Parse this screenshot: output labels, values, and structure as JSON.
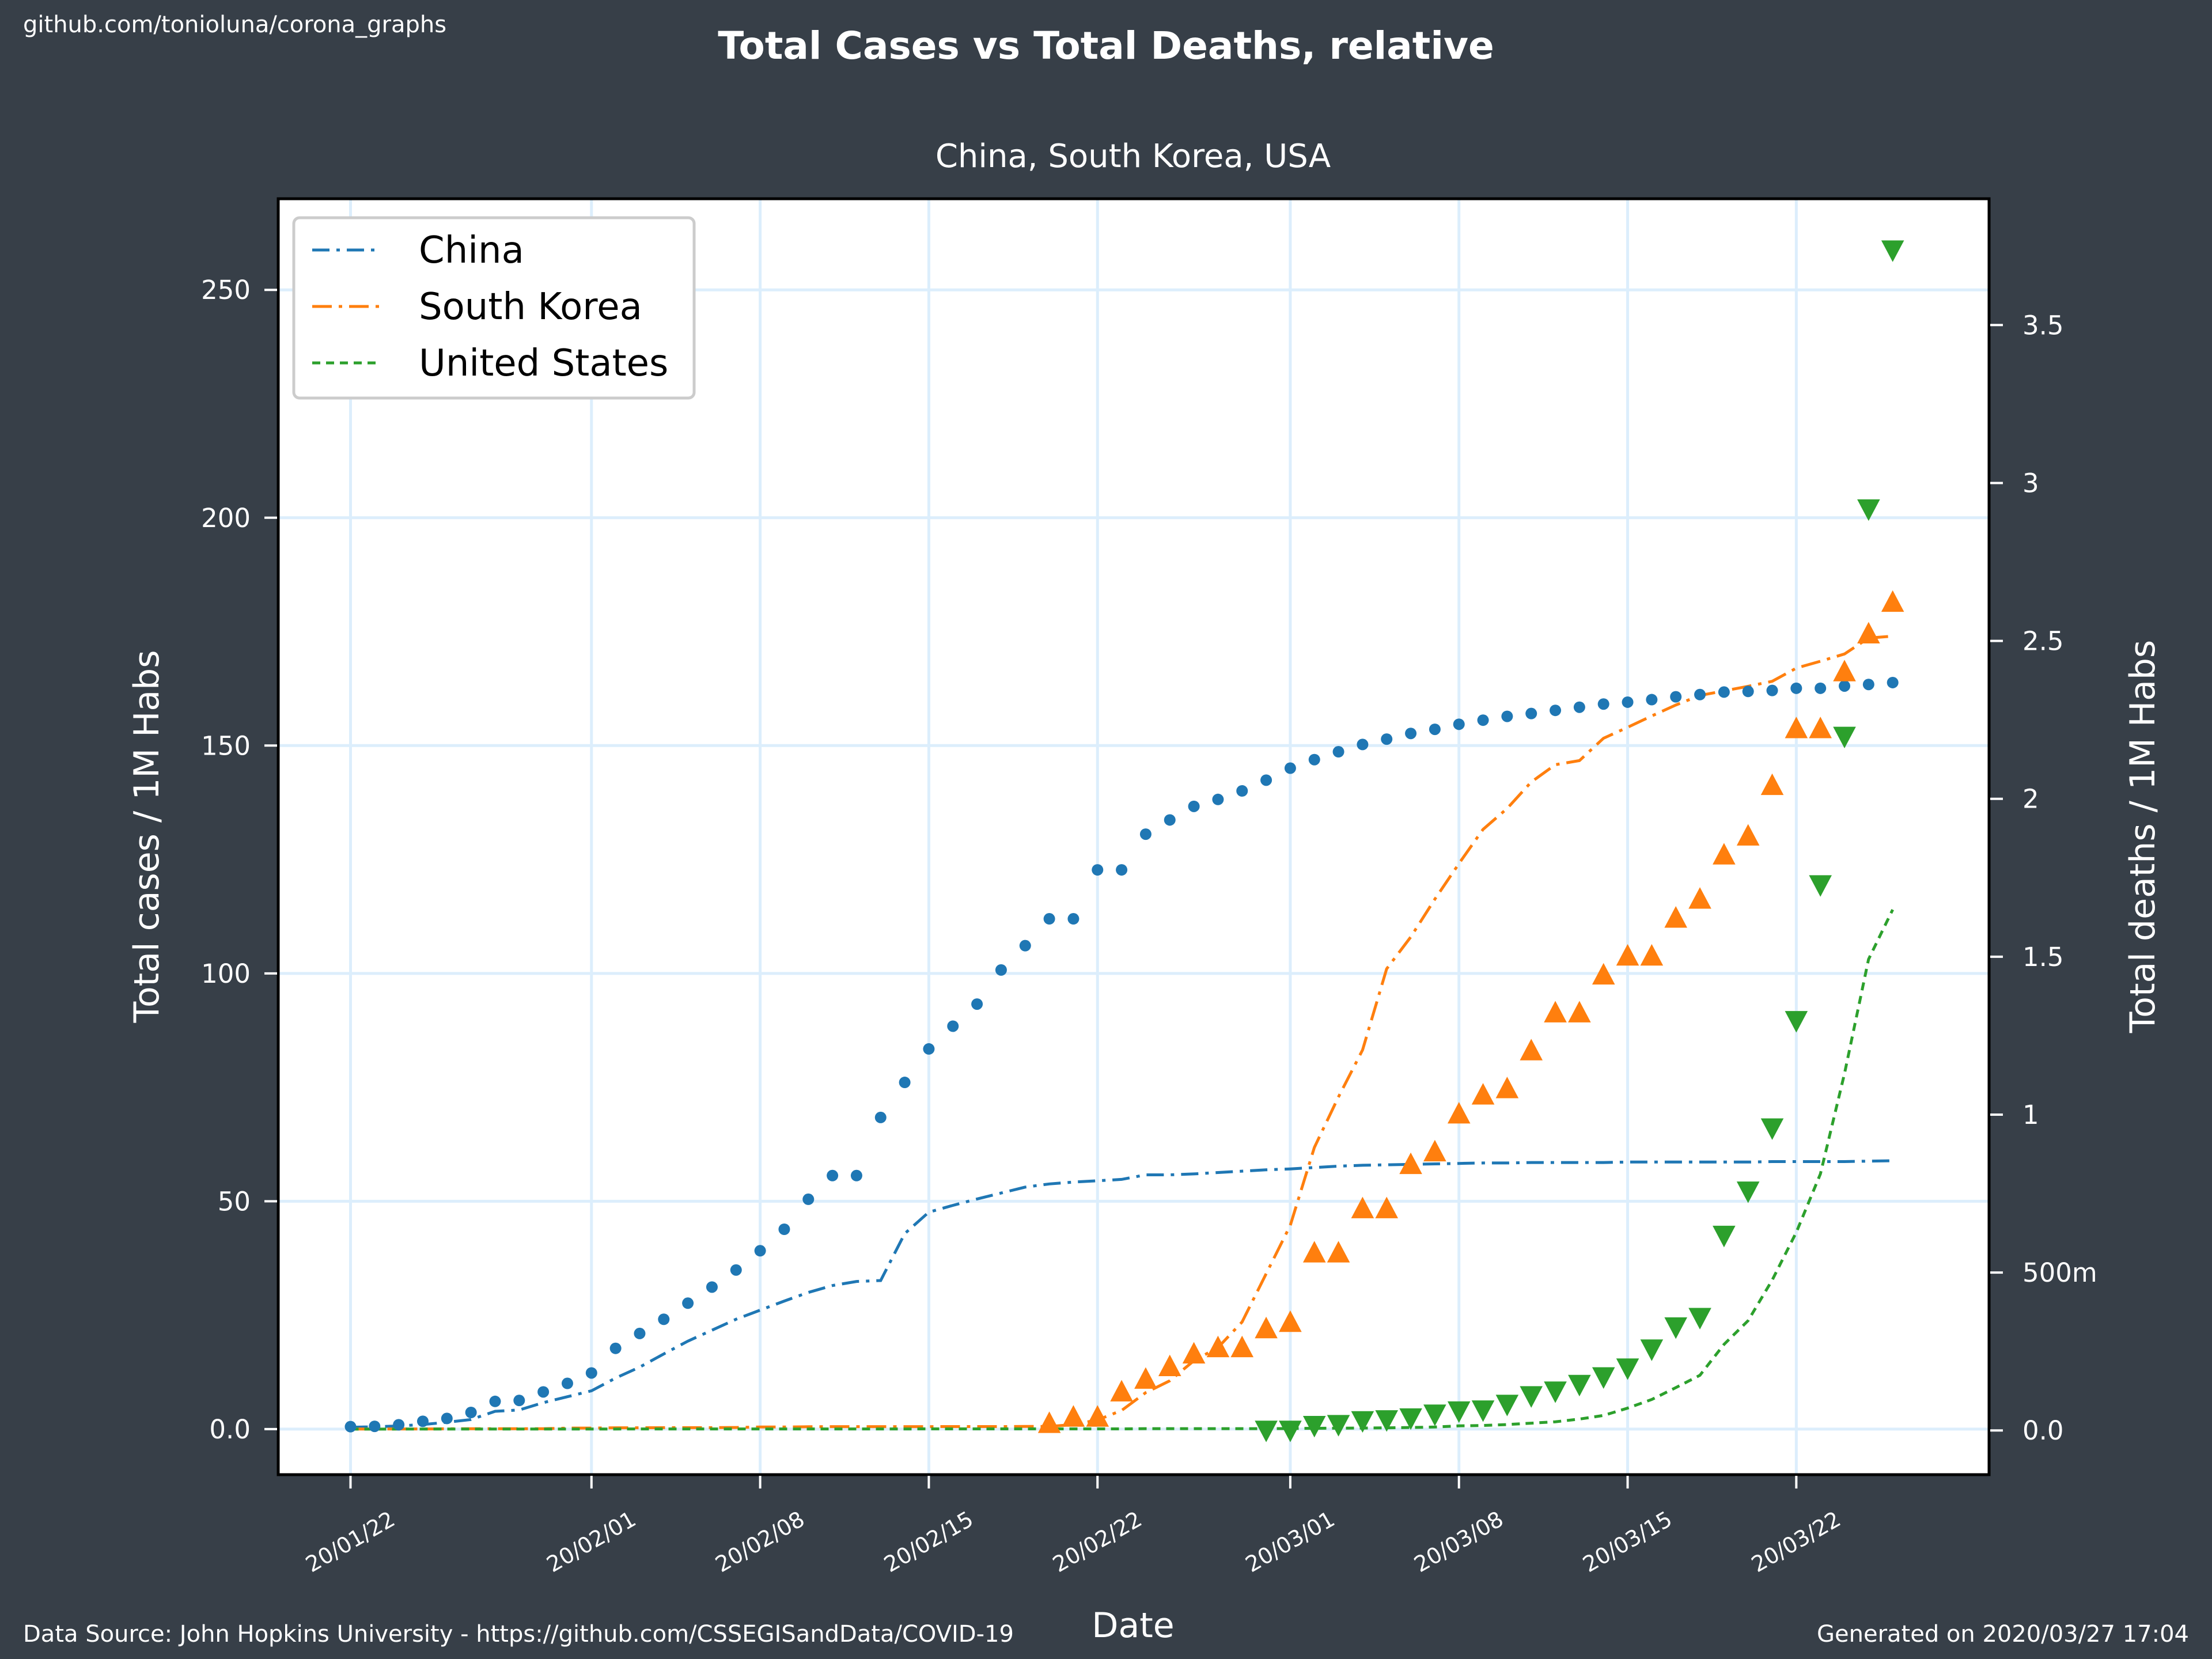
{
  "header": {
    "source_repo": "github.com/tonioluna/corona_graphs"
  },
  "footer": {
    "data_source": "Data Source: John Hopkins University - https://github.com/CSSEGISandData/COVID-19",
    "generated": "Generated on 2020/03/27 17:04"
  },
  "colors": {
    "background": "#373f48",
    "plot_background": "#ffffff",
    "grid": "#dceefc",
    "china": "#1f77b4",
    "south_korea": "#ff7f0e",
    "united_states": "#2ca02c"
  },
  "chart_data": {
    "type": "line",
    "title": "Total Cases vs Total Deaths, relative",
    "subtitle": "China, South Korea, USA",
    "xlabel": "Date",
    "ylabel": "Total cases / 1M Habs",
    "y2label": "Total deaths / 1M Habs",
    "grid": true,
    "legend_position": "top-left",
    "x_start": "2020-01-22",
    "x_end": "2020-03-26",
    "xlim": [
      "2020-01-19",
      "2020-03-30"
    ],
    "ylim": [
      -10,
      270
    ],
    "y2lim": [
      -0.14,
      3.9
    ],
    "x_ticks": [
      {
        "date": "2020-01-22",
        "label": "20/01/22"
      },
      {
        "date": "2020-02-01",
        "label": "20/02/01"
      },
      {
        "date": "2020-02-08",
        "label": "20/02/08"
      },
      {
        "date": "2020-02-15",
        "label": "20/02/15"
      },
      {
        "date": "2020-02-22",
        "label": "20/02/22"
      },
      {
        "date": "2020-03-01",
        "label": "20/03/01"
      },
      {
        "date": "2020-03-08",
        "label": "20/03/08"
      },
      {
        "date": "2020-03-15",
        "label": "20/03/15"
      },
      {
        "date": "2020-03-22",
        "label": "20/03/22"
      }
    ],
    "y_ticks": [
      {
        "value": 0,
        "label": "0.0"
      },
      {
        "value": 50,
        "label": "50"
      },
      {
        "value": 100,
        "label": "100"
      },
      {
        "value": 150,
        "label": "150"
      },
      {
        "value": 200,
        "label": "200"
      },
      {
        "value": 250,
        "label": "250"
      }
    ],
    "y2_ticks": [
      {
        "value": 0,
        "label": "0.0"
      },
      {
        "value": 0.5,
        "label": "500m"
      },
      {
        "value": 1,
        "label": "1"
      },
      {
        "value": 1.5,
        "label": "1.5"
      },
      {
        "value": 2,
        "label": "2"
      },
      {
        "value": 2.5,
        "label": "2.5"
      },
      {
        "value": 3,
        "label": "3"
      },
      {
        "value": 3.5,
        "label": "3.5"
      }
    ],
    "series": [
      {
        "name": "China",
        "color": "#1f77b4",
        "cases_start": "2020-01-22",
        "cases": [
          0.4,
          0.5,
          0.7,
          1.0,
          1.5,
          2.1,
          3.9,
          4.2,
          5.8,
          7.1,
          8.4,
          11.2,
          13.6,
          16.5,
          19.3,
          21.7,
          24.1,
          26.1,
          28.1,
          30.0,
          31.5,
          32.4,
          32.6,
          42.9,
          47.6,
          49.1,
          50.5,
          51.8,
          53.1,
          53.8,
          54.2,
          54.5,
          54.8,
          55.8,
          55.8,
          56.0,
          56.3,
          56.6,
          56.9,
          57.1,
          57.4,
          57.7,
          57.9,
          58.0,
          58.1,
          58.2,
          58.3,
          58.4,
          58.4,
          58.5,
          58.5,
          58.5,
          58.5,
          58.6,
          58.6,
          58.6,
          58.6,
          58.6,
          58.6,
          58.7,
          58.7,
          58.7,
          58.7,
          58.8,
          58.9
        ],
        "deaths_start": "2020-01-22",
        "deaths": [
          0.012,
          0.013,
          0.018,
          0.029,
          0.038,
          0.057,
          0.092,
          0.095,
          0.122,
          0.149,
          0.182,
          0.26,
          0.307,
          0.352,
          0.403,
          0.454,
          0.508,
          0.569,
          0.637,
          0.732,
          0.807,
          0.807,
          0.991,
          1.102,
          1.208,
          1.28,
          1.35,
          1.458,
          1.535,
          1.62,
          1.62,
          1.775,
          1.775,
          1.888,
          1.933,
          1.976,
          1.998,
          2.025,
          2.059,
          2.097,
          2.124,
          2.149,
          2.172,
          2.189,
          2.207,
          2.22,
          2.236,
          2.249,
          2.261,
          2.27,
          2.28,
          2.29,
          2.3,
          2.306,
          2.314,
          2.323,
          2.33,
          2.338,
          2.34,
          2.343,
          2.35,
          2.35,
          2.357,
          2.362,
          2.368
        ],
        "deaths_marker": "circle"
      },
      {
        "name": "South Korea",
        "color": "#ff7f0e",
        "cases_start": "2020-01-22",
        "cases": [
          0.02,
          0.02,
          0.04,
          0.04,
          0.06,
          0.08,
          0.08,
          0.08,
          0.08,
          0.21,
          0.23,
          0.29,
          0.29,
          0.31,
          0.31,
          0.31,
          0.35,
          0.46,
          0.46,
          0.52,
          0.54,
          0.54,
          0.54,
          0.54,
          0.54,
          0.56,
          0.56,
          0.56,
          0.58,
          0.58,
          1.0,
          2.0,
          4.1,
          8.0,
          10.6,
          15.0,
          17.9,
          23.5,
          34.1,
          44.7,
          61.8,
          72.9,
          83.2,
          101.0,
          108.0,
          116.3,
          124.1,
          131.6,
          136.2,
          142.0,
          145.8,
          146.7,
          151.6,
          154.0,
          156.5,
          158.9,
          161.0,
          162.0,
          163.0,
          164.1,
          167.0,
          168.5,
          170.1,
          173.6,
          174.0
        ]
      },
      {
        "name": "United States",
        "color": "#2ca02c",
        "cases_start": "2020-01-22",
        "cases": [
          0.003,
          0.003,
          0.006,
          0.006,
          0.015,
          0.015,
          0.015,
          0.015,
          0.015,
          0.018,
          0.024,
          0.024,
          0.033,
          0.033,
          0.033,
          0.036,
          0.036,
          0.036,
          0.036,
          0.036,
          0.036,
          0.039,
          0.039,
          0.039,
          0.045,
          0.045,
          0.045,
          0.045,
          0.045,
          0.045,
          0.045,
          0.045,
          0.045,
          0.106,
          0.106,
          0.106,
          0.106,
          0.106,
          0.106,
          0.127,
          0.18,
          0.2,
          0.225,
          0.283,
          0.358,
          0.46,
          0.704,
          0.8,
          1.0,
          1.3,
          1.6,
          2.2,
          3.0,
          4.6,
          6.5,
          9.1,
          11.8,
          18.6,
          23.8,
          32.7,
          43.2,
          56.0,
          78.0,
          103.1,
          114.0
        ]
      }
    ]
  }
}
